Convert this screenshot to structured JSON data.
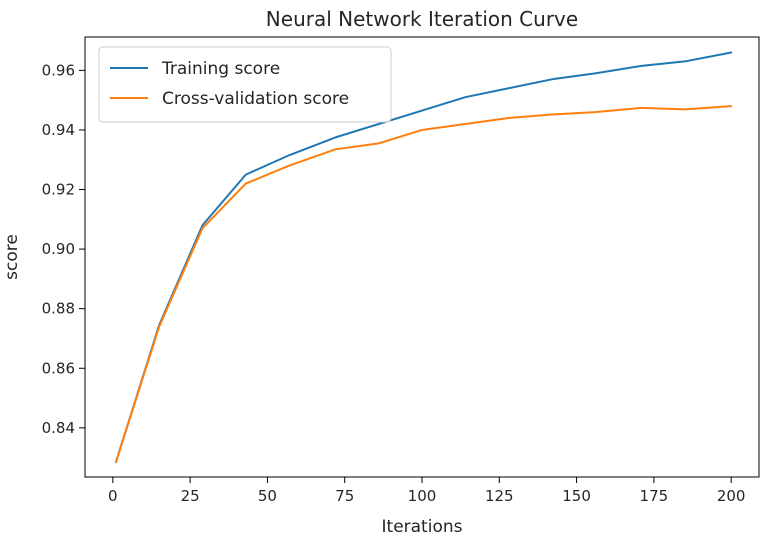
{
  "chart_data": {
    "type": "line",
    "title": "Neural Network Iteration Curve",
    "xlabel": "Iterations",
    "ylabel": "score",
    "xlim": [
      -9,
      209
    ],
    "ylim": [
      0.8235,
      0.9712
    ],
    "xticks": [
      0,
      25,
      50,
      75,
      100,
      125,
      150,
      175,
      200
    ],
    "yticks": [
      0.84,
      0.86,
      0.88,
      0.9,
      0.92,
      0.94,
      0.96
    ],
    "ytick_labels": [
      "0.84",
      "0.86",
      "0.88",
      "0.90",
      "0.92",
      "0.94",
      "0.96"
    ],
    "grid": false,
    "legend_position": "upper-left",
    "x": [
      1,
      15,
      29,
      43,
      57,
      72,
      86,
      100,
      114,
      128,
      142,
      156,
      171,
      185,
      200
    ],
    "series": [
      {
        "name": "Training score",
        "color": "#1f77b4",
        "values": [
          0.8285,
          0.8745,
          0.908,
          0.925,
          0.9315,
          0.9375,
          0.942,
          0.9465,
          0.951,
          0.954,
          0.957,
          0.959,
          0.9615,
          0.963,
          0.966
        ]
      },
      {
        "name": "Cross-validation score",
        "color": "#ff7f0e",
        "values": [
          0.8285,
          0.874,
          0.907,
          0.922,
          0.928,
          0.9335,
          0.9355,
          0.94,
          0.942,
          0.944,
          0.9452,
          0.946,
          0.9474,
          0.9469,
          0.948
        ]
      }
    ]
  }
}
